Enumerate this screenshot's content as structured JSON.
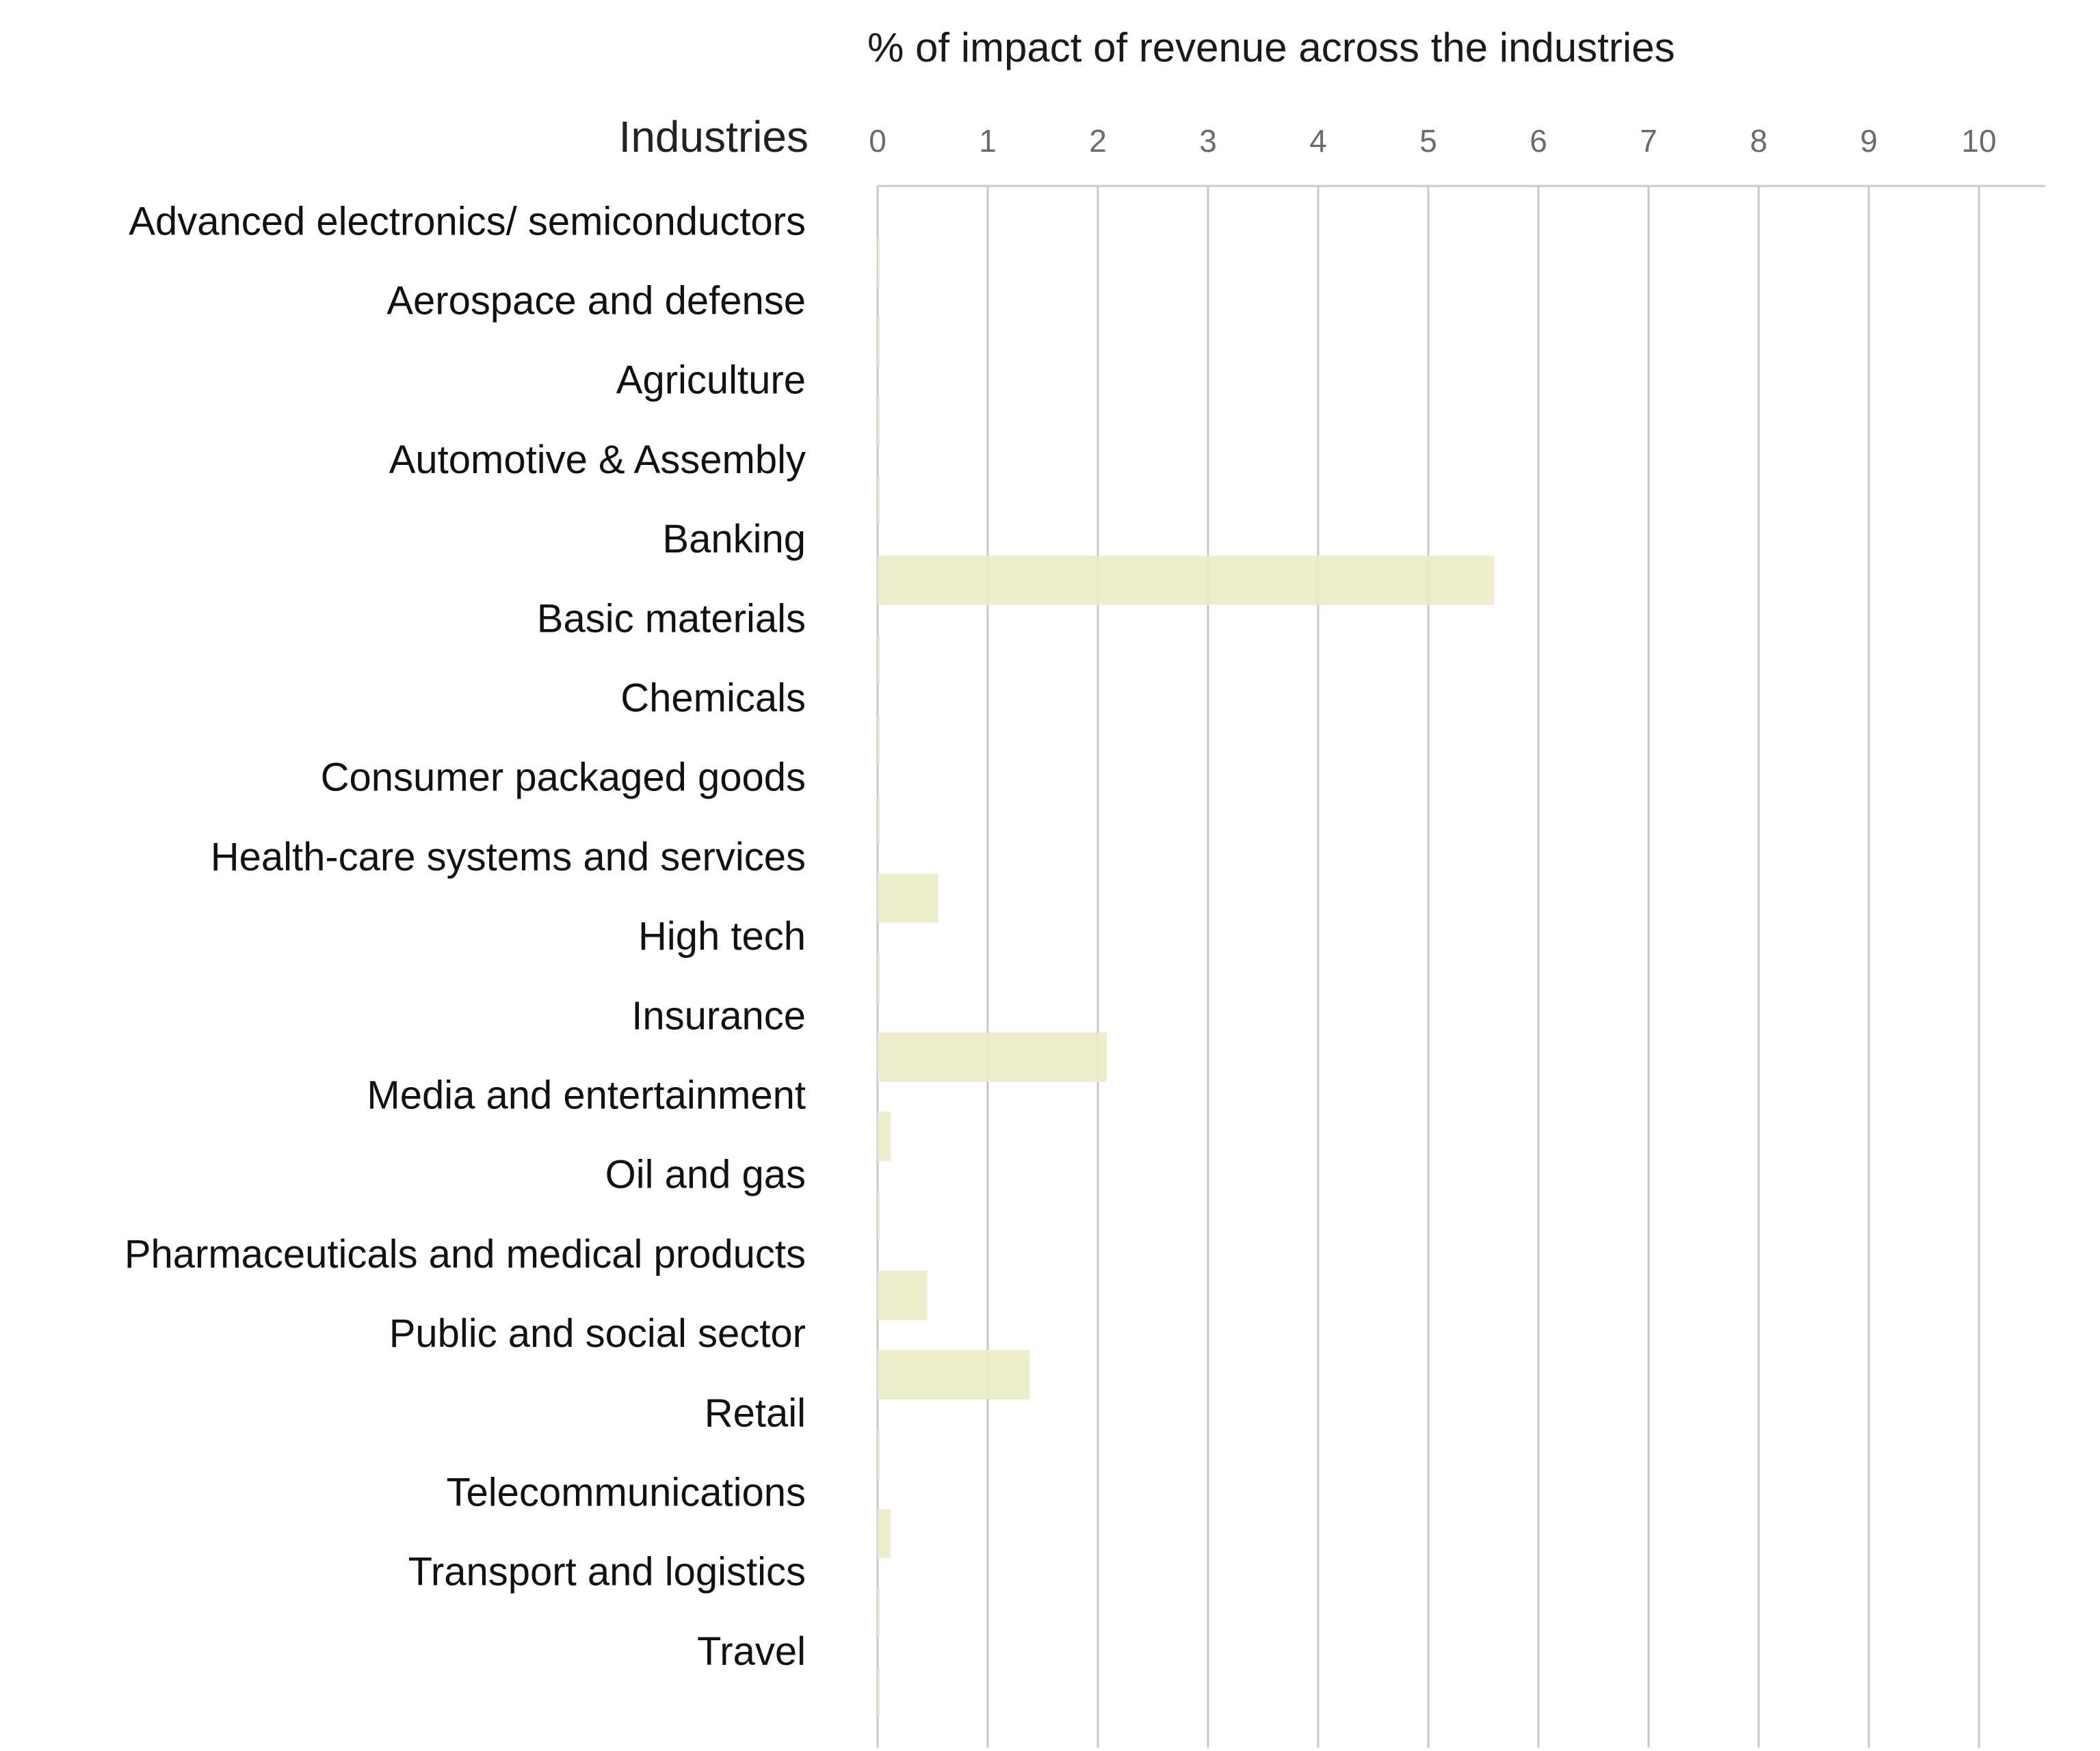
{
  "chart_data": {
    "type": "bar",
    "orientation": "horizontal",
    "title": "% of impact of revenue across the industries",
    "category_header": "Industries",
    "xlim": [
      0,
      10.6
    ],
    "ticks": [
      "0",
      "1",
      "2",
      "3",
      "4",
      "5",
      "6",
      "7",
      "8",
      "9",
      "10"
    ],
    "grid": true,
    "bar_color": "#ecebca",
    "categories": [
      "Advanced electronics/ semiconductors",
      "Aerospace and defense",
      "Agriculture",
      "Automotive & Assembly",
      "Banking",
      "Basic materials",
      "Chemicals",
      "Consumer packaged goods",
      "Health-care systems and services",
      "High tech",
      "Insurance",
      "Media and entertainment",
      "Oil and gas",
      "Pharmaceuticals and medical products",
      "Public and social sector",
      "Retail",
      "Telecommunications",
      "Transport and logistics",
      "Travel"
    ],
    "values": [
      0.02,
      0.01,
      0.01,
      0.01,
      5.6,
      0.01,
      0.01,
      0.01,
      0.55,
      0.01,
      2.08,
      0.12,
      0.01,
      0.45,
      1.38,
      0.01,
      0.12,
      0.01,
      0.01
    ]
  }
}
